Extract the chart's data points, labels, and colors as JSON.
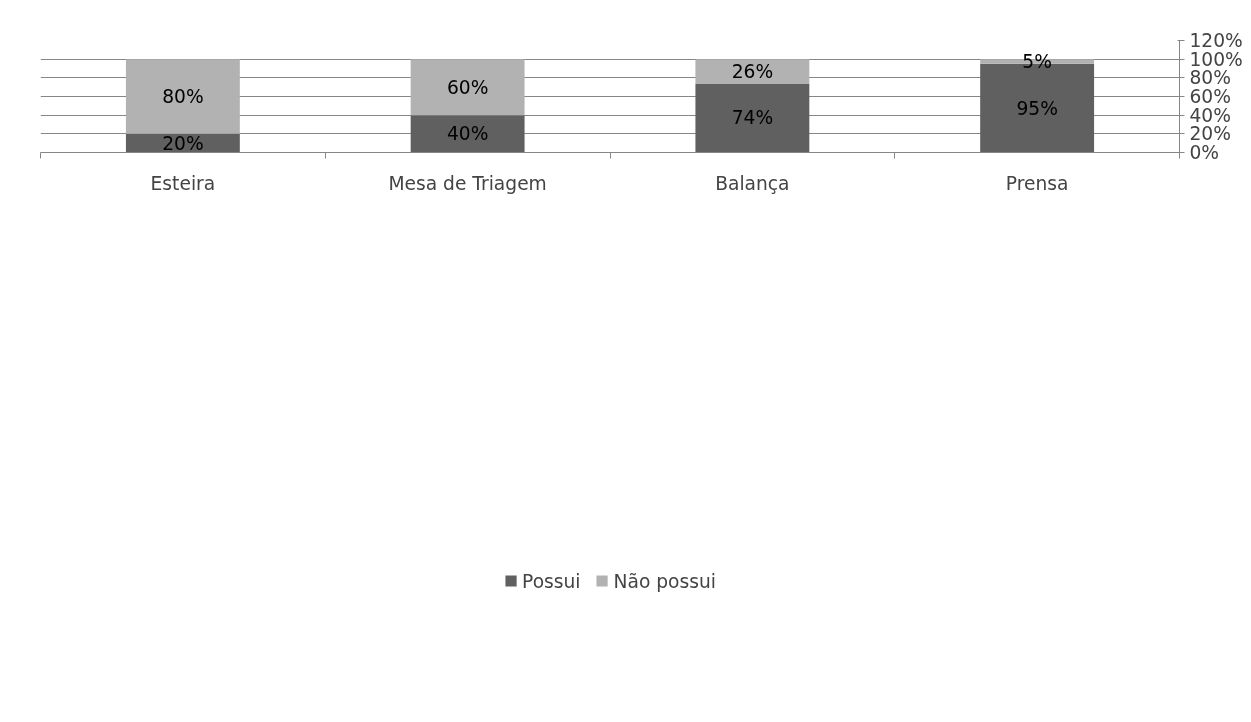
{
  "chart_data": {
    "type": "bar",
    "stacked": true,
    "categories": [
      "Esteira",
      "Mesa de Triagem",
      "Balança",
      "Prensa"
    ],
    "series": [
      {
        "name": "Possui",
        "color": "#606060",
        "values": [
          20,
          40,
          74,
          95
        ],
        "value_labels": [
          "20%",
          "40%",
          "74%",
          "95%"
        ]
      },
      {
        "name": "Não possui",
        "color": "#b2b2b2",
        "values": [
          80,
          60,
          26,
          5
        ],
        "value_labels": [
          "80%",
          "60%",
          "26%",
          "5%"
        ]
      }
    ],
    "ylim": [
      0,
      120
    ],
    "yticks": [
      {
        "value": 0,
        "label": "0%"
      },
      {
        "value": 20,
        "label": "20%"
      },
      {
        "value": 40,
        "label": "40%"
      },
      {
        "value": 60,
        "label": "60%"
      },
      {
        "value": 80,
        "label": "80%"
      },
      {
        "value": 100,
        "label": "100%"
      },
      {
        "value": 120,
        "label": "120%"
      }
    ],
    "grid": "y",
    "legend": "bottom"
  }
}
